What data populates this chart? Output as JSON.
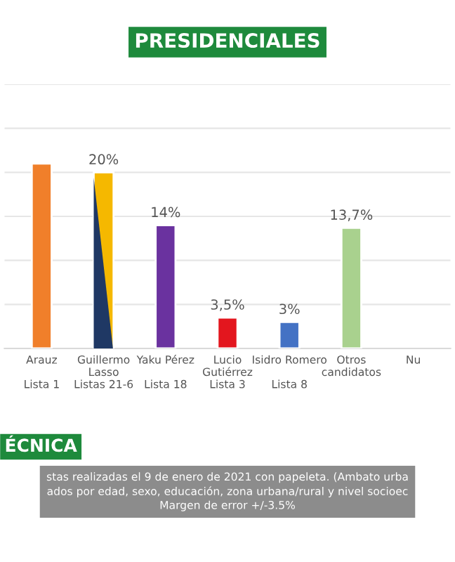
{
  "chart_data": {
    "type": "bar",
    "title": "PRESIDENCIALES",
    "categories": [
      "Arauz\n\nLista 1",
      "Guillermo\nLasso\nListas 21-6",
      "Yaku Pérez\n\nLista 18",
      "Lucio\nGutiérrez\nLista 3",
      "Isidro Romero\n\nLista 8",
      "Otros\ncandidatos",
      "Nu"
    ],
    "values": [
      21,
      20,
      14,
      3.5,
      3,
      13.7,
      null
    ],
    "colors": [
      "#f07f2a",
      "#f5b800",
      "#6a329f",
      "#e3161e",
      "#4472c4",
      "#a9d18e",
      "#bbbbbb"
    ],
    "value_labels": [
      null,
      "20%",
      "14%",
      "3,5%",
      "3%",
      "13,7%",
      null
    ],
    "ylim": [
      0,
      30
    ],
    "yticks": [
      {
        "value": 0,
        "label": null
      },
      {
        "value": 5,
        "label": null
      },
      {
        "value": 10,
        "label": null
      },
      {
        "value": 15,
        "label": null
      },
      {
        "value": 20,
        "label": null
      },
      {
        "value": 25,
        "label": null
      },
      {
        "value": 30,
        "label": null
      }
    ],
    "grid": "y",
    "tick_labels": "x",
    "annotations": [
      "ÉCNICA",
      "stas realizadas el 9 de enero de 2021 con papeleta. (Ambato urba\nados por edad, sexo, educación, zona urbana/rural y nivel socioec\nMargen de error +/-3.5%"
    ]
  }
}
